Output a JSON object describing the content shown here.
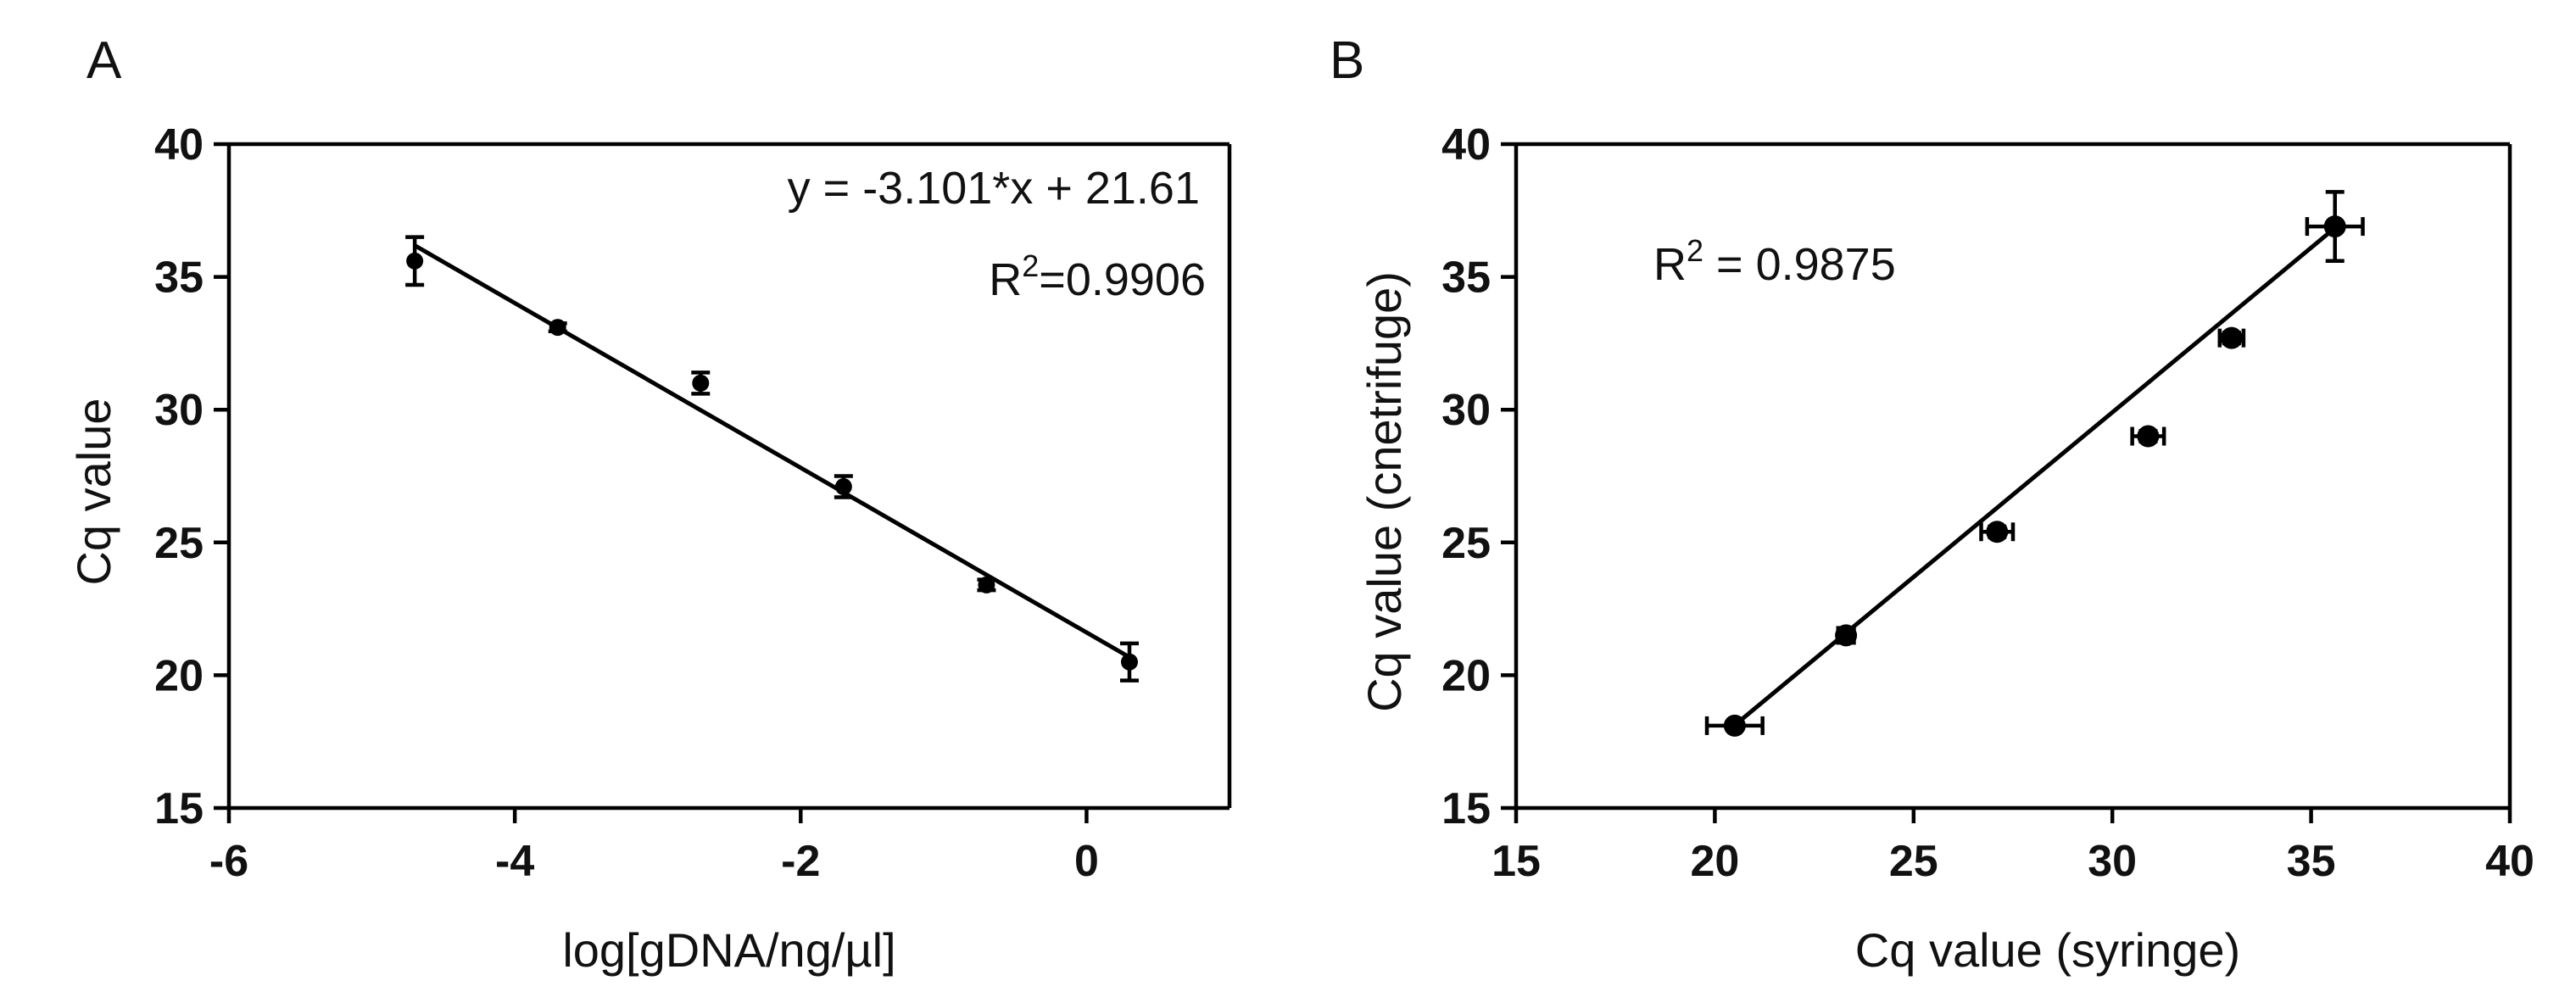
{
  "chart_data": [
    {
      "panel": "A",
      "type": "scatter",
      "xlabel": "log[gDNA/ng/µl]",
      "ylabel": "Cq value",
      "xlim": [
        -6,
        1
      ],
      "ylim": [
        15,
        40
      ],
      "xticks": [
        -6,
        -4,
        -2,
        0
      ],
      "yticks": [
        15,
        20,
        25,
        30,
        35,
        40
      ],
      "x_tick_labels": [
        "-6",
        "-4",
        "-2",
        "0"
      ],
      "y_tick_labels": [
        "15",
        "20",
        "25",
        "30",
        "35",
        "40"
      ],
      "equation": "y = -3.101*x + 21.61",
      "r2_prefix": "R",
      "r2_sup": "2",
      "r2_suffix": "=0.9906",
      "fit": {
        "slope": -3.101,
        "intercept": 21.61,
        "x_range": [
          -4.7,
          0.3
        ]
      },
      "points": [
        {
          "x": -4.7,
          "y": 35.6,
          "yerr": 0.9,
          "xerr": 0
        },
        {
          "x": -3.7,
          "y": 33.1,
          "yerr": 0.15,
          "xerr": 0
        },
        {
          "x": -2.7,
          "y": 31.0,
          "yerr": 0.4,
          "xerr": 0
        },
        {
          "x": -1.7,
          "y": 27.1,
          "yerr": 0.4,
          "xerr": 0
        },
        {
          "x": -0.7,
          "y": 23.4,
          "yerr": 0.2,
          "xerr": 0
        },
        {
          "x": 0.3,
          "y": 20.5,
          "yerr": 0.7,
          "xerr": 0
        }
      ]
    },
    {
      "panel": "B",
      "type": "scatter",
      "xlabel": "Cq value (syringe)",
      "ylabel": "Cq value (cnetrifuge)",
      "xlim": [
        15,
        40
      ],
      "ylim": [
        15,
        40
      ],
      "xticks": [
        15,
        20,
        25,
        30,
        35,
        40
      ],
      "yticks": [
        15,
        20,
        25,
        30,
        35,
        40
      ],
      "x_tick_labels": [
        "15",
        "20",
        "25",
        "30",
        "35",
        "40"
      ],
      "y_tick_labels": [
        "15",
        "20",
        "25",
        "30",
        "35",
        "40"
      ],
      "r2_prefix": "R",
      "r2_sup": "2",
      "r2_suffix": " = 0.9875",
      "fit": {
        "slope": 1.24,
        "intercept": -7.3,
        "x_range": [
          20.5,
          35.6
        ]
      },
      "points": [
        {
          "x": 20.5,
          "y": 18.1,
          "xerr": 0.7,
          "yerr": 0.15
        },
        {
          "x": 23.3,
          "y": 21.5,
          "xerr": 0.2,
          "yerr": 0.2
        },
        {
          "x": 27.1,
          "y": 25.4,
          "xerr": 0.4,
          "yerr": 0.2
        },
        {
          "x": 30.9,
          "y": 29.0,
          "xerr": 0.4,
          "yerr": 0.2
        },
        {
          "x": 33.0,
          "y": 32.7,
          "xerr": 0.3,
          "yerr": 0.2
        },
        {
          "x": 35.6,
          "y": 36.9,
          "xerr": 0.7,
          "yerr": 1.3
        }
      ]
    }
  ]
}
